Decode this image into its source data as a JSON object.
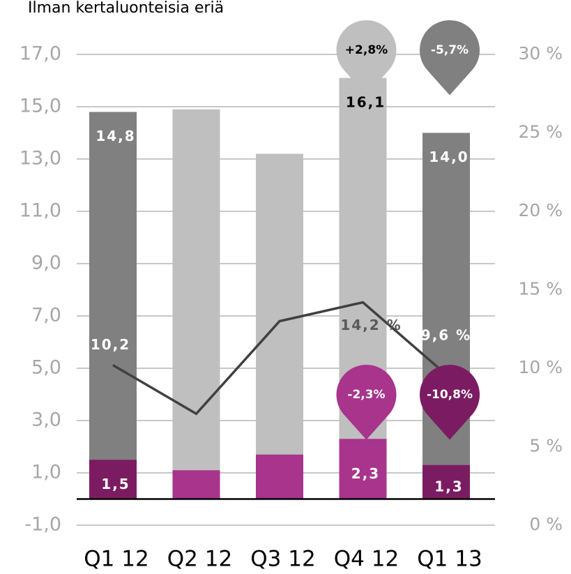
{
  "chart_data": {
    "type": "bar_line",
    "title": "Ilman kertaluonteisia eriä",
    "categories": [
      "Q1 12",
      "Q2 12",
      "Q3 12",
      "Q4 12",
      "Q1 13"
    ],
    "series": [
      {
        "values": [
          14.8,
          14.9,
          13.2,
          16.1,
          14.0
        ],
        "value_labels": [
          "14,8",
          null,
          null,
          "16,1",
          "14,0"
        ],
        "colors": [
          "#808080",
          "#bfbfbf",
          "#bfbfbf",
          "#bfbfbf",
          "#808080"
        ],
        "label_colors": [
          "#ffffff",
          null,
          null,
          "#000000",
          "#ffffff"
        ],
        "callouts": [
          null,
          null,
          null,
          "+2,8%",
          "-5,7%"
        ],
        "callout_colors": [
          null,
          null,
          null,
          "#bfbfbf",
          "#808080"
        ],
        "callout_text_colors": [
          null,
          null,
          null,
          "#000000",
          "#ffffff"
        ]
      },
      {
        "values": [
          1.5,
          1.1,
          1.7,
          2.3,
          1.3
        ],
        "value_labels": [
          "1,5",
          null,
          null,
          "2,3",
          "1,3"
        ],
        "colors": [
          "#7b1c62",
          "#a8348c",
          "#a8348c",
          "#a8348c",
          "#7b1c62"
        ],
        "label_colors": [
          "#ffffff",
          null,
          null,
          "#ffffff",
          "#ffffff"
        ],
        "callouts": [
          null,
          null,
          null,
          "-2,3%",
          "-10,8%"
        ],
        "callout_colors": [
          null,
          null,
          null,
          "#a8348c",
          "#7b1c62"
        ],
        "callout_text_colors": [
          null,
          null,
          null,
          "#ffffff",
          "#ffffff"
        ]
      },
      {
        "type": "line",
        "axis": "y2",
        "color": "#404040",
        "values": [
          10.2,
          7.1,
          13.0,
          14.2,
          9.6
        ],
        "value_labels": [
          "10,2 %",
          null,
          null,
          "14,2 %",
          "9,6 %"
        ],
        "label_colors": [
          "#ffffff",
          null,
          null,
          "#595959",
          "#ffffff"
        ]
      }
    ],
    "ylim": [
      -1,
      17
    ],
    "yticks": [
      {
        "value": -1,
        "label": "-1,0"
      },
      {
        "value": 1,
        "label": "1,0"
      },
      {
        "value": 3,
        "label": "3,0"
      },
      {
        "value": 5,
        "label": "5,0"
      },
      {
        "value": 7,
        "label": "7,0"
      },
      {
        "value": 9,
        "label": "9,0"
      },
      {
        "value": 11,
        "label": "11,0"
      },
      {
        "value": 13,
        "label": "13,0"
      },
      {
        "value": 15,
        "label": "15,0"
      },
      {
        "value": 17,
        "label": "17,0"
      }
    ],
    "y2lim": [
      0,
      30
    ],
    "y2ticks": [
      {
        "value": 0,
        "label": "0 %"
      },
      {
        "value": 5,
        "label": "5 %"
      },
      {
        "value": 10,
        "label": "10 %"
      },
      {
        "value": 15,
        "label": "15 %"
      },
      {
        "value": 20,
        "label": "20 %"
      },
      {
        "value": 25,
        "label": "25 %"
      },
      {
        "value": 30,
        "label": "30 %"
      }
    ],
    "grid": true
  }
}
